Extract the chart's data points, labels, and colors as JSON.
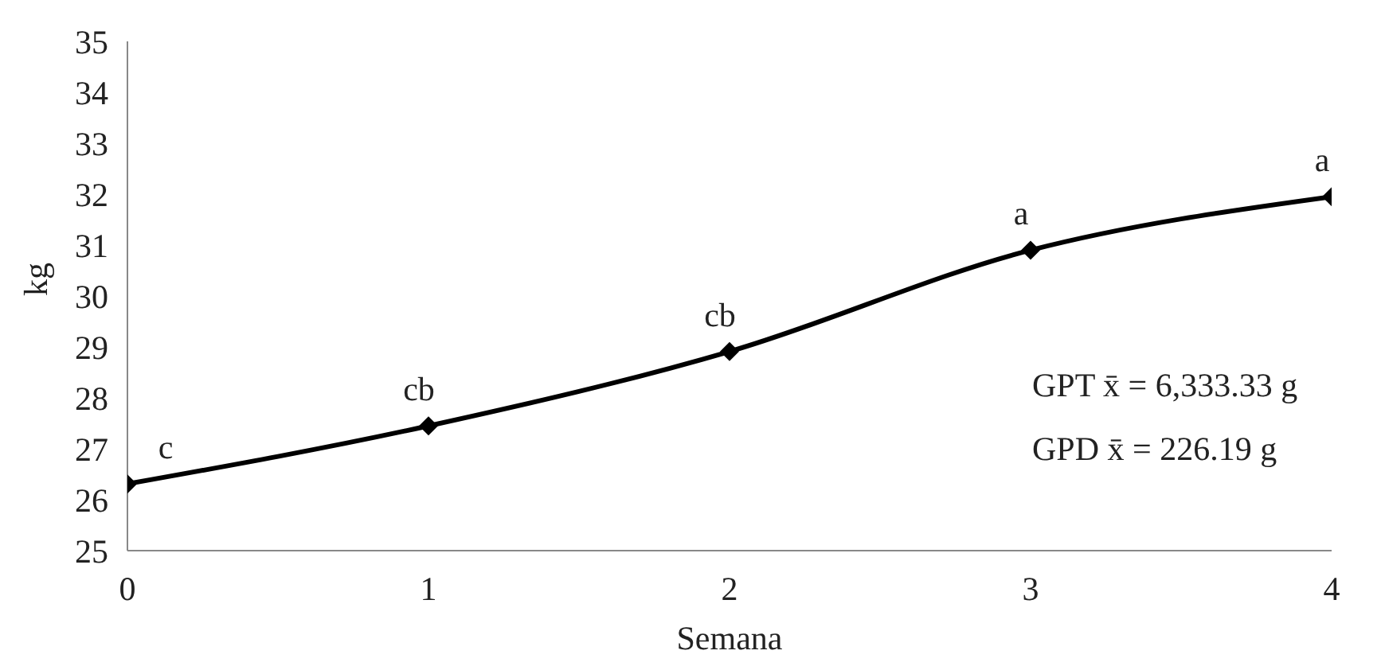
{
  "chart_data": {
    "type": "line",
    "xlabel": "Semana",
    "ylabel": "kg",
    "x": [
      0,
      1,
      2,
      3,
      4
    ],
    "series": [
      {
        "color": "#000000",
        "values": [
          26.31,
          27.45,
          28.91,
          30.9,
          31.95
        ]
      }
    ],
    "xlim": [
      0,
      4
    ],
    "xticks": [
      0,
      1,
      2,
      3,
      4
    ],
    "ylim": [
      25,
      35
    ],
    "yticks": [
      25,
      26,
      27,
      28,
      29,
      30,
      31,
      32,
      33,
      34,
      35
    ],
    "grid": false,
    "legend": false,
    "marker": "diamond",
    "line_style": "solid",
    "annotations": [
      {
        "text": "c",
        "x": 0,
        "y": 26.31
      },
      {
        "text": "cb",
        "x": 1,
        "y": 27.45
      },
      {
        "text": "cb",
        "x": 2,
        "y": 28.91
      },
      {
        "text": "a",
        "x": 3,
        "y": 30.9
      },
      {
        "text": "a",
        "x": 4,
        "y": 31.95
      },
      "GPT x̄ = 6,333.33 g",
      "GPD x̄ = 226.19 g"
    ]
  }
}
